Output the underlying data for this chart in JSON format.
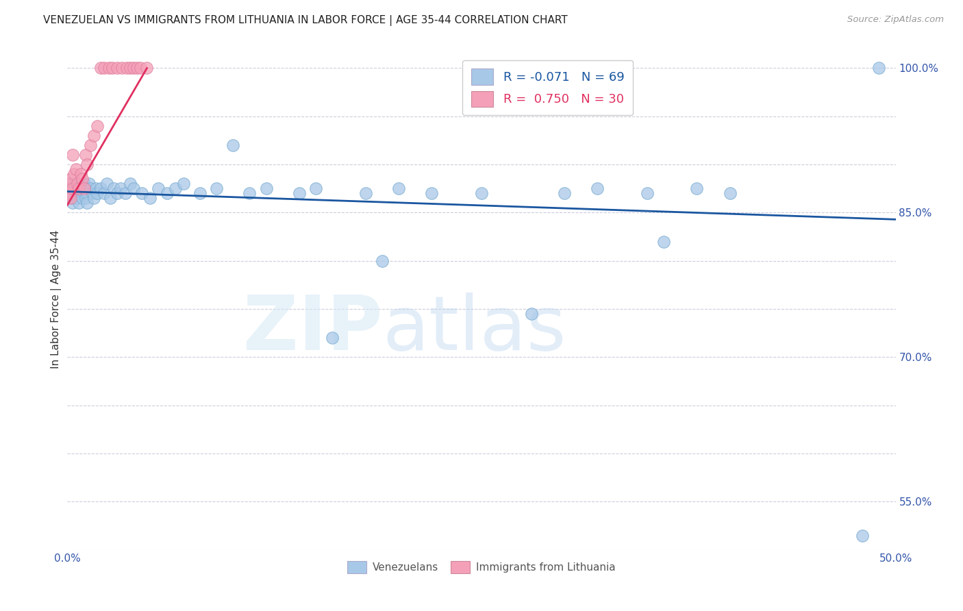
{
  "title": "VENEZUELAN VS IMMIGRANTS FROM LITHUANIA IN LABOR FORCE | AGE 35-44 CORRELATION CHART",
  "source": "Source: ZipAtlas.com",
  "ylabel": "In Labor Force | Age 35-44",
  "x_min": 0.0,
  "x_max": 0.5,
  "y_min": 0.5,
  "y_max": 1.02,
  "blue_color": "#a8c8e8",
  "pink_color": "#f4a0b8",
  "blue_line_color": "#1a56a0",
  "pink_line_color": "#e03060",
  "blue_edge_color": "#7aacd0",
  "pink_edge_color": "#e080a0",
  "ven_x": [
    0.001,
    0.001,
    0.002,
    0.002,
    0.003,
    0.003,
    0.004,
    0.004,
    0.005,
    0.005,
    0.006,
    0.006,
    0.007,
    0.007,
    0.007,
    0.008,
    0.008,
    0.009,
    0.009,
    0.01,
    0.01,
    0.011,
    0.011,
    0.012,
    0.012,
    0.013,
    0.014,
    0.015,
    0.016,
    0.017,
    0.018,
    0.02,
    0.022,
    0.024,
    0.026,
    0.028,
    0.03,
    0.032,
    0.035,
    0.038,
    0.04,
    0.045,
    0.05,
    0.055,
    0.06,
    0.065,
    0.07,
    0.08,
    0.09,
    0.1,
    0.11,
    0.12,
    0.14,
    0.15,
    0.16,
    0.18,
    0.19,
    0.2,
    0.22,
    0.25,
    0.28,
    0.3,
    0.32,
    0.35,
    0.36,
    0.38,
    0.4,
    0.48,
    0.49
  ],
  "ven_y": [
    0.87,
    0.875,
    0.865,
    0.88,
    0.87,
    0.86,
    0.875,
    0.865,
    0.87,
    0.88,
    0.875,
    0.865,
    0.87,
    0.875,
    0.86,
    0.87,
    0.88,
    0.865,
    0.875,
    0.87,
    0.88,
    0.865,
    0.875,
    0.87,
    0.86,
    0.88,
    0.875,
    0.87,
    0.865,
    0.875,
    0.87,
    0.875,
    0.87,
    0.88,
    0.865,
    0.875,
    0.87,
    0.875,
    0.87,
    0.88,
    0.875,
    0.87,
    0.865,
    0.875,
    0.87,
    0.875,
    0.88,
    0.87,
    0.875,
    0.92,
    0.87,
    0.875,
    0.87,
    0.875,
    0.72,
    0.87,
    0.8,
    0.875,
    0.87,
    0.87,
    0.745,
    0.87,
    0.875,
    0.87,
    0.82,
    0.875,
    0.87,
    0.515,
    1.0
  ],
  "lith_x": [
    0.001,
    0.001,
    0.002,
    0.002,
    0.003,
    0.003,
    0.004,
    0.005,
    0.006,
    0.007,
    0.008,
    0.009,
    0.01,
    0.011,
    0.012,
    0.014,
    0.016,
    0.018,
    0.02,
    0.022,
    0.025,
    0.027,
    0.03,
    0.033,
    0.036,
    0.038,
    0.04,
    0.042,
    0.044,
    0.048
  ],
  "lith_y": [
    0.88,
    0.87,
    0.885,
    0.865,
    0.875,
    0.91,
    0.89,
    0.895,
    0.88,
    0.875,
    0.89,
    0.885,
    0.875,
    0.91,
    0.9,
    0.92,
    0.93,
    0.94,
    1.0,
    1.0,
    1.0,
    1.0,
    1.0,
    1.0,
    1.0,
    1.0,
    1.0,
    1.0,
    1.0,
    1.0
  ],
  "blue_trend_x": [
    0.0,
    0.5
  ],
  "blue_trend_y": [
    0.872,
    0.843
  ],
  "pink_trend_x": [
    0.0,
    0.048
  ],
  "pink_trend_y": [
    0.858,
    1.0
  ]
}
